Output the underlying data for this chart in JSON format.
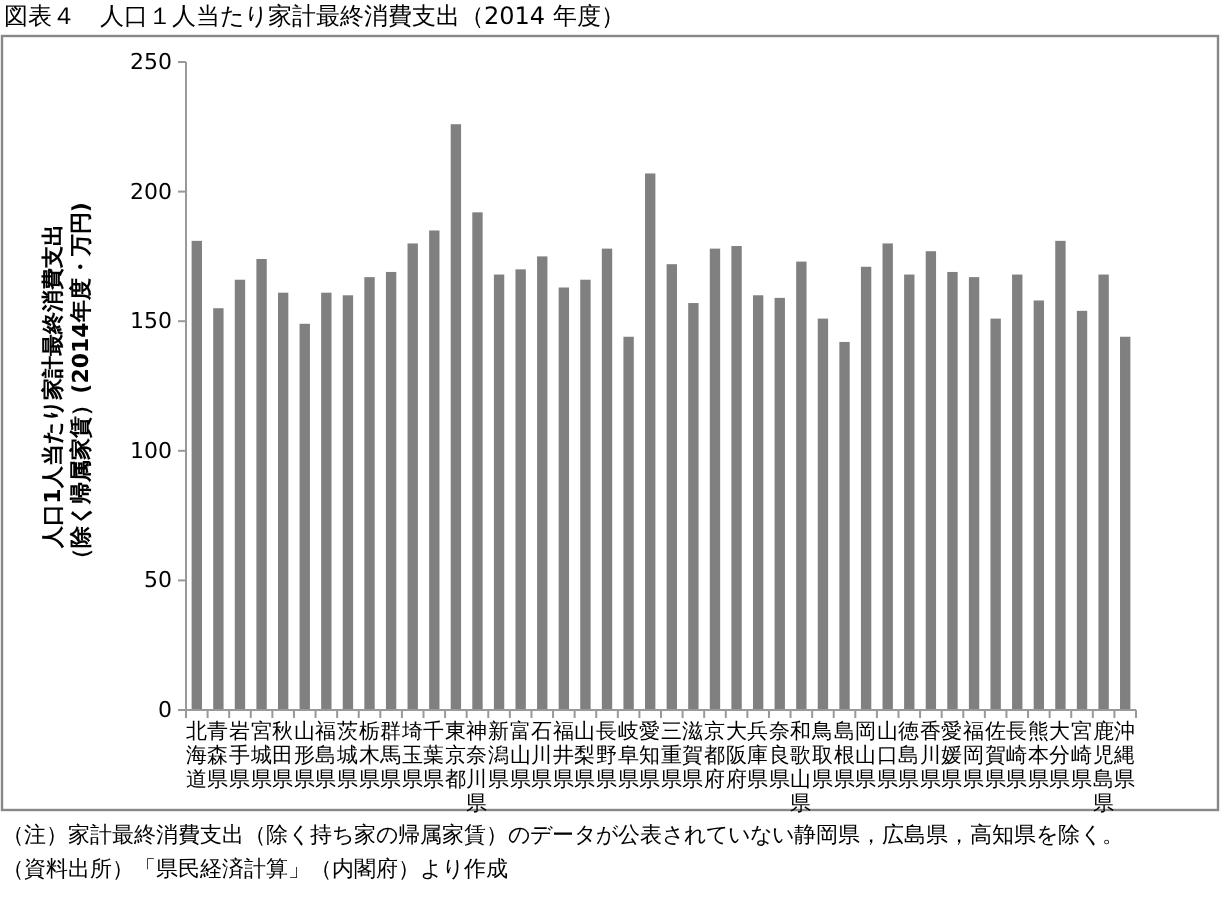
{
  "chart_data": {
    "type": "bar",
    "title": "図表４　人口１人当たり家計最終消費支出（2014 年度）",
    "ylabel": "人口1人当たり家計最終消費支出（除く帰属家賃）(2014年度・万円)",
    "categories": [
      "北海道",
      "青森県",
      "岩手県",
      "宮城県",
      "秋田県",
      "山形県",
      "福島県",
      "茨城県",
      "栃木県",
      "群馬県",
      "埼玉県",
      "千葉県",
      "東京都",
      "神奈川県",
      "新潟県",
      "富山県",
      "石川県",
      "福井県",
      "山梨県",
      "長野県",
      "岐阜県",
      "愛知県",
      "三重県",
      "滋賀県",
      "京都府",
      "大阪府",
      "兵庫県",
      "奈良県",
      "和歌山県",
      "鳥取県",
      "島根県",
      "岡山県",
      "山口県",
      "徳島県",
      "香川県",
      "愛媛県",
      "福岡県",
      "佐賀県",
      "長崎県",
      "熊本県",
      "大分県",
      "宮崎県",
      "鹿児島県",
      "沖縄県"
    ],
    "values": [
      181,
      155,
      166,
      174,
      161,
      149,
      161,
      160,
      167,
      169,
      180,
      185,
      226,
      192,
      168,
      170,
      175,
      163,
      166,
      178,
      144,
      207,
      172,
      157,
      178,
      179,
      160,
      159,
      173,
      151,
      142,
      171,
      180,
      168,
      177,
      169,
      167,
      151,
      168,
      158,
      181,
      154,
      168,
      144
    ],
    "color": "#808080",
    "ylim": [
      0,
      250
    ],
    "yticks": [
      0,
      50,
      100,
      150,
      200,
      250
    ],
    "grid": false,
    "annotations": [
      "（注）家計最終消費支出（除く持ち家の帰属家賃）のデータが公表されていない静岡県，広島県，高知県を除く。",
      "（資料出所）「県民経済計算」（内閣府）より作成"
    ]
  }
}
